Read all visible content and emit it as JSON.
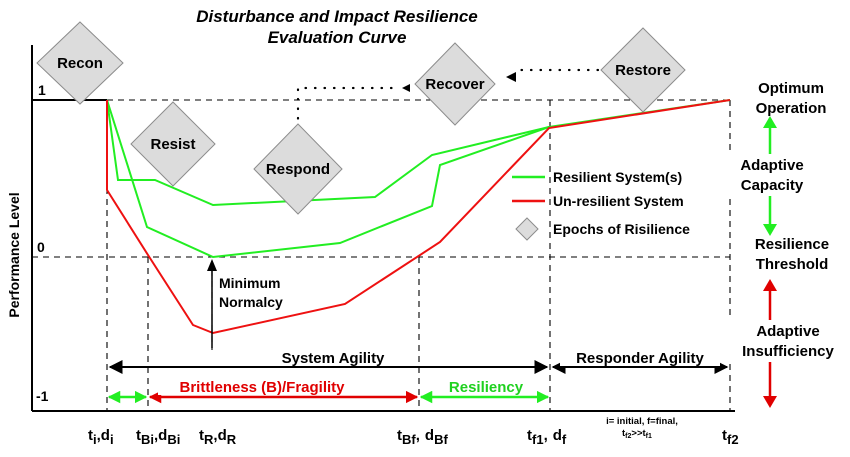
{
  "title": {
    "line1": "Disturbance and Impact Resilience",
    "line2": "Evaluation Curve"
  },
  "axis": {
    "ylabel": "Performance Level",
    "y_ticks": [
      "1",
      "0",
      "-1"
    ],
    "x_ticks": [
      {
        "main": "t",
        "sub": "i",
        "comma": ",",
        "main2": "d",
        "sub2": "i"
      },
      {
        "main": "t",
        "sub": "Bi",
        "comma": ",",
        "main2": "d",
        "sub2": "Bi"
      },
      {
        "main": "t",
        "sub": "R",
        "comma": ",",
        "main2": "d",
        "sub2": "R"
      },
      {
        "main": "t",
        "sub": "Bf",
        "comma": ",",
        "main2": "d",
        "sub2": "Bf"
      },
      {
        "main": "t",
        "sub": "f1",
        "comma": ",",
        "main2": "d",
        "sub2": "f"
      },
      {
        "main": "t",
        "sub": "f2",
        "comma": "",
        "main2": "",
        "sub2": ""
      }
    ],
    "x_note": {
      "line1": "i= initial, f=final,",
      "line2": "t",
      "line2_sub_a": "f2",
      "line2_mid": ">>t",
      "line2_sub_b": "f1"
    }
  },
  "phases": [
    "Recon",
    "Resist",
    "Respond",
    "Recover",
    "Restore"
  ],
  "legend": {
    "resilient": "Resilient System(s)",
    "unresilient": "Un-resilient System",
    "epochs": "Epochs of Risilience"
  },
  "annotations": {
    "minimum_normalcy": [
      "Minimum",
      "Normalcy"
    ],
    "system_agility": "System Agility",
    "responder_agility": "Responder Agility",
    "brittleness": "Brittleness (B)/Fragility",
    "resiliency": "Resiliency"
  },
  "right_panel": {
    "optimum": [
      "Optimum",
      "Operation"
    ],
    "adaptive_capacity": [
      "Adaptive",
      "Capacity"
    ],
    "resilience_threshold": [
      "Resilience",
      "Threshold"
    ],
    "adaptive_insufficiency": [
      "Adaptive",
      "Insufficiency"
    ]
  },
  "colors": {
    "resilient": "#22ee22",
    "unresilient": "#ee1111",
    "diamond_fill": "#dcdcdc",
    "diamond_stroke": "#8c8c8c",
    "arrow_green": "#22ee22",
    "arrow_red": "#e00000"
  }
}
